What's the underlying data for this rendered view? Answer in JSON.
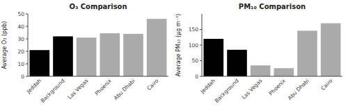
{
  "chart_data": [
    {
      "type": "bar",
      "title": "O₃ Comparison",
      "ylabel": "Average O₃ (ppb)",
      "categories": [
        "Jeddah",
        "Background",
        "Las Vegas",
        "Phoenix",
        "Abu Dhabi",
        "Cairo"
      ],
      "values": [
        21,
        32,
        31,
        34.5,
        34,
        46
      ],
      "colors": [
        "#000000",
        "#000000",
        "#aaaaaa",
        "#aaaaaa",
        "#aaaaaa",
        "#aaaaaa"
      ],
      "ylim": [
        0,
        50
      ],
      "yticks": [
        0,
        10,
        20,
        30,
        40,
        50
      ],
      "grid": false
    },
    {
      "type": "bar",
      "title": "PM₁₀ Comparison",
      "ylabel": "Average PM₁₀ (μg m⁻³)",
      "categories": [
        "Jeddah",
        "Background",
        "Las Vegas",
        "Phoenix",
        "Abu Dhabi",
        "Cairo"
      ],
      "values": [
        120,
        85,
        35,
        26,
        146,
        170
      ],
      "colors": [
        "#000000",
        "#000000",
        "#aaaaaa",
        "#aaaaaa",
        "#aaaaaa",
        "#aaaaaa"
      ],
      "ylim": [
        0,
        200
      ],
      "yticks": [
        0,
        50,
        100,
        150
      ],
      "grid": false
    }
  ]
}
